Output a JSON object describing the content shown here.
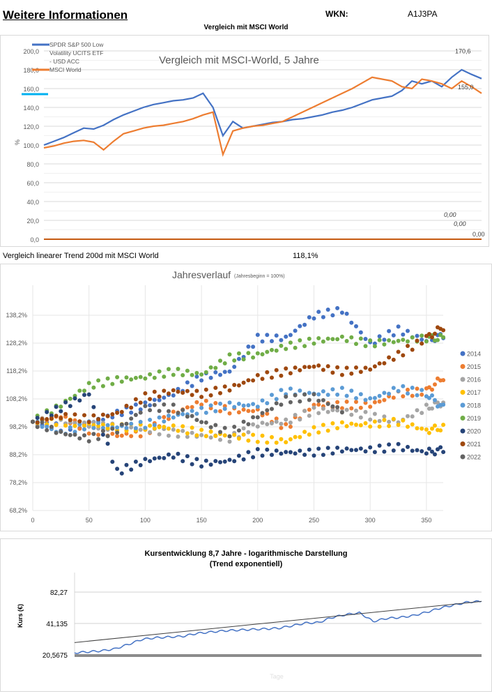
{
  "header": {
    "title": "Weitere Informationen",
    "wkn_label": "WKN:",
    "wkn_value": "A1J3PA",
    "subtitle": "Vergleich mit MSCI World"
  },
  "trend_row": {
    "label": "Vergleich linearer Trend 200d mit MSCI World",
    "value": "118,1%"
  },
  "chart_data": [
    {
      "type": "line",
      "title": "Vergleich mit MSCI-World, 5 Jahre",
      "ylabel": "%",
      "ylim": [
        0,
        200
      ],
      "yticks": [
        "0,0",
        "20,0",
        "40,0",
        "60,0",
        "80,0",
        "100,0",
        "120,0",
        "140,0",
        "160,0",
        "180,0",
        "200,0"
      ],
      "grid": true,
      "legend": "top-left",
      "series": [
        {
          "name": "SPDR S&P 500 Low Volatility UCITS ETF - USD ACC",
          "color": "#4472c4",
          "end_label": "170,6",
          "values": [
            100,
            104,
            108,
            113,
            118,
            117,
            121,
            127,
            132,
            136,
            140,
            143,
            145,
            147,
            148,
            150,
            155,
            140,
            110,
            125,
            118,
            120,
            122,
            124,
            125,
            127,
            128,
            130,
            132,
            135,
            137,
            140,
            144,
            148,
            150,
            152,
            158,
            168,
            165,
            168,
            162,
            172,
            180,
            175,
            170.6
          ]
        },
        {
          "name": "MSCI World",
          "color": "#ed7d31",
          "end_label": "155,0",
          "values": [
            97,
            99,
            102,
            104,
            105,
            103,
            95,
            104,
            112,
            115,
            118,
            120,
            121,
            123,
            125,
            128,
            132,
            135,
            90,
            115,
            118,
            120,
            121,
            123,
            125,
            130,
            135,
            140,
            145,
            150,
            155,
            160,
            166,
            172,
            170,
            168,
            162,
            160,
            170,
            168,
            165,
            160,
            168,
            162,
            155
          ]
        }
      ],
      "flat_series_labels": [
        "0,00",
        "0,00",
        "0,00"
      ]
    },
    {
      "type": "scatter",
      "title": "Jahresverlauf",
      "subtitle": "(Jahresbeginn = 100%)",
      "xlim": [
        0,
        365
      ],
      "ylim": [
        68.2,
        148.2
      ],
      "xticks": [
        0,
        50,
        100,
        150,
        200,
        250,
        300,
        350
      ],
      "yticks": [
        "68,2%",
        "78,2%",
        "88,2%",
        "98,2%",
        "108,2%",
        "118,2%",
        "128,2%",
        "138,2%"
      ],
      "legend": "right",
      "x": [
        0,
        25,
        50,
        75,
        100,
        125,
        150,
        175,
        200,
        225,
        250,
        275,
        300,
        325,
        350,
        365
      ],
      "series": [
        {
          "name": "2014",
          "color": "#4472c4",
          "values": [
            100,
            98,
            99,
            103,
            106,
            110,
            116,
            118,
            130,
            130,
            138,
            140,
            128,
            133,
            129,
            131
          ]
        },
        {
          "name": "2015",
          "color": "#ed7d31",
          "values": [
            100,
            102,
            97,
            95,
            96,
            103,
            107,
            104,
            104,
            98,
            106,
            106,
            106,
            110,
            111,
            116
          ]
        },
        {
          "name": "2016",
          "color": "#a5a5a5",
          "values": [
            100,
            100,
            99,
            98,
            97,
            96,
            95,
            94,
            99,
            100,
            104,
            104,
            102,
            100,
            105,
            107
          ]
        },
        {
          "name": "2017",
          "color": "#ffc000",
          "values": [
            100,
            100,
            99,
            98,
            98,
            98,
            96,
            95,
            94,
            93,
            97,
            99,
            99,
            100,
            97,
            98
          ]
        },
        {
          "name": "2018",
          "color": "#5b9bd5",
          "values": [
            100,
            96,
            99,
            98,
            99,
            102,
            104,
            106,
            106,
            111,
            110,
            111,
            108,
            112,
            110,
            105
          ]
        },
        {
          "name": "2019",
          "color": "#70ad47",
          "values": [
            100,
            106,
            113,
            115,
            116,
            118,
            117,
            123,
            124,
            127,
            129,
            130,
            128,
            129,
            130,
            130
          ]
        },
        {
          "name": "2020",
          "color": "#264478",
          "values": [
            100,
            105,
            110,
            82,
            86,
            88,
            85,
            86,
            89,
            89,
            89,
            90,
            90,
            91,
            89,
            90
          ]
        },
        {
          "name": "2021",
          "color": "#9e480e",
          "values": [
            100,
            102,
            101,
            103,
            109,
            111,
            110,
            112,
            116,
            118,
            120,
            118,
            119,
            124,
            130,
            134
          ]
        },
        {
          "name": "2022",
          "color": "#636363",
          "values": [
            100,
            96,
            94,
            97,
            105,
            105,
            100,
            96,
            102,
            108,
            109,
            104,
            null,
            null,
            null,
            null
          ]
        }
      ]
    },
    {
      "type": "line",
      "title": "Kursentwicklung 8,7 Jahre - logarithmische Darstellung",
      "subtitle": "(Trend exponentiell)",
      "ylabel": "Kurs (€)",
      "xlabel": "Tage",
      "yscale": "log",
      "yticks": [
        "20,5675",
        "41,135",
        "82,27"
      ],
      "ylim": [
        20.5675,
        164.54
      ],
      "series": [
        {
          "color": "#4472c4",
          "values": [
            21.5,
            22,
            22.5,
            23.5,
            26,
            29,
            30,
            30.5,
            31,
            33,
            34,
            35,
            35.5,
            36,
            36.5,
            37,
            39,
            41.5,
            42,
            47,
            50,
            52,
            43,
            46,
            47,
            49,
            53,
            58,
            62,
            66,
            67
          ]
        }
      ],
      "trend": {
        "type": "exponential",
        "start": 27,
        "end": 67,
        "color": "#404040"
      }
    }
  ]
}
